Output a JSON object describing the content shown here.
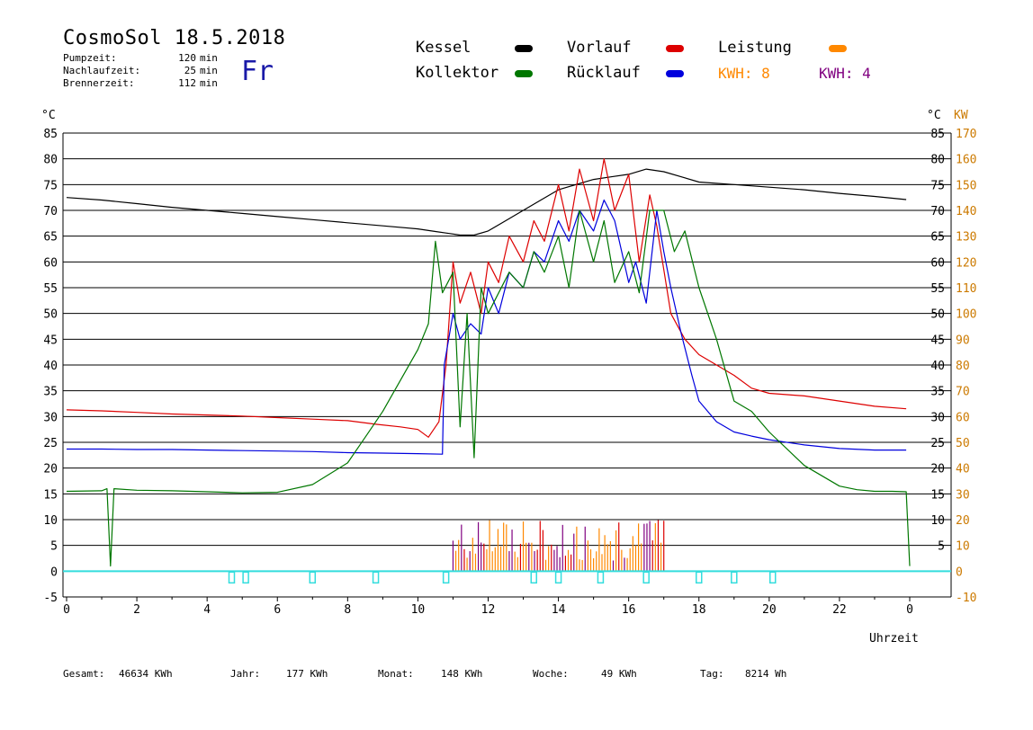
{
  "header": {
    "title": "CosmoSol 18.5.2018",
    "day": "Fr",
    "info": [
      {
        "label": "Pumpzeit:",
        "value": "120",
        "unit": "min"
      },
      {
        "label": "Nachlaufzeit:",
        "value": "25",
        "unit": "min"
      },
      {
        "label": "Brennerzeit:",
        "value": "112",
        "unit": "min"
      }
    ]
  },
  "legend": {
    "kessel": {
      "label": "Kessel",
      "color": "#000000"
    },
    "vorlauf": {
      "label": "Vorlauf",
      "color": "#dd0000"
    },
    "leistung": {
      "label": "Leistung",
      "color": "#ff8800"
    },
    "kollektor": {
      "label": "Kollektor",
      "color": "#007700"
    },
    "ruecklauf": {
      "label": "Rücklauf",
      "color": "#0000dd"
    },
    "kwh1": {
      "label": "KWH: 8",
      "color": "#ff8800"
    },
    "kwh2": {
      "label": "KWH: 4",
      "color": "#800080"
    }
  },
  "footer": [
    {
      "label": "Gesamt:",
      "value": "46634 KWh"
    },
    {
      "label": "Jahr:",
      "value": "177 KWh"
    },
    {
      "label": "Monat:",
      "value": "148 KWh"
    },
    {
      "label": "Woche:",
      "value": "49 KWh"
    },
    {
      "label": "Tag:",
      "value": "8214 Wh"
    }
  ],
  "chart_data": {
    "type": "line",
    "xlabel": "Uhrzeit",
    "ylabel_left": "°C",
    "ylabel_right_temp": "°C",
    "ylabel_right_power": "KW",
    "xlim": [
      0,
      24
    ],
    "ylim": [
      -5,
      85
    ],
    "ylim_right_power": [
      -10,
      170
    ],
    "x_ticks": [
      "0",
      "2",
      "4",
      "6",
      "8",
      "10",
      "12",
      "14",
      "16",
      "18",
      "20",
      "22",
      "0"
    ],
    "y_ticks_left": [
      "85",
      "80",
      "75",
      "70",
      "65",
      "60",
      "55",
      "50",
      "45",
      "40",
      "35",
      "30",
      "25",
      "20",
      "15",
      "10",
      "5",
      "0",
      "-5"
    ],
    "y_ticks_right_temp": [
      "85",
      "80",
      "75",
      "70",
      "65",
      "60",
      "55",
      "50",
      "45",
      "40",
      "35",
      "30",
      "25",
      "20",
      "15",
      "10",
      "5"
    ],
    "y_ticks_right_power": [
      "170",
      "160",
      "150",
      "140",
      "130",
      "120",
      "110",
      "100",
      "90",
      "80",
      "70",
      "60",
      "50",
      "40",
      "30",
      "20",
      "10",
      "0",
      "-10"
    ],
    "grid": true,
    "series": [
      {
        "name": "Kessel",
        "color": "#000000",
        "x": [
          0,
          1,
          2,
          3,
          4,
          5,
          6,
          7,
          8,
          9,
          10,
          10.5,
          10.8,
          11.2,
          11.6,
          12,
          12.5,
          13,
          13.5,
          14,
          14.5,
          15,
          15.5,
          16,
          16.5,
          17,
          17.5,
          18,
          19,
          20,
          21,
          22,
          23,
          23.9
        ],
        "y": [
          72.5,
          72,
          71.3,
          70.6,
          70,
          69.4,
          68.8,
          68.2,
          67.6,
          67,
          66.4,
          65.9,
          65.6,
          65.2,
          65.2,
          66,
          68,
          70,
          72,
          74,
          75,
          76,
          76.5,
          77,
          78,
          77.5,
          76.5,
          75.5,
          75,
          74.5,
          74,
          73.3,
          72.7,
          72.1
        ]
      },
      {
        "name": "Vorlauf",
        "color": "#dd0000",
        "x": [
          0,
          1,
          2,
          3,
          4,
          5,
          6,
          7,
          8,
          8.8,
          9.5,
          10,
          10.3,
          10.6,
          10.8,
          11,
          11.2,
          11.5,
          11.8,
          12,
          12.3,
          12.6,
          13,
          13.3,
          13.6,
          14,
          14.3,
          14.6,
          15,
          15.3,
          15.6,
          16,
          16.3,
          16.6,
          16.8,
          17.2,
          17.6,
          18,
          18.5,
          19,
          19.5,
          20,
          21,
          22,
          23,
          23.9
        ],
        "y": [
          31.3,
          31.1,
          30.8,
          30.5,
          30.3,
          30.1,
          29.8,
          29.5,
          29.2,
          28.5,
          28,
          27.5,
          26,
          29,
          40,
          60,
          52,
          58,
          50,
          60,
          56,
          65,
          60,
          68,
          64,
          75,
          66,
          78,
          68,
          80,
          70,
          77,
          60,
          73,
          67,
          50,
          45,
          42,
          40,
          38,
          35.5,
          34.5,
          34,
          33,
          32,
          31.5
        ]
      },
      {
        "name": "Rücklauf",
        "color": "#0000dd",
        "x": [
          0,
          1,
          2,
          3,
          4,
          5,
          6,
          7,
          8,
          9,
          10,
          10.7,
          10.75,
          11,
          11.2,
          11.5,
          11.8,
          12,
          12.3,
          12.6,
          13,
          13.3,
          13.6,
          14,
          14.3,
          14.6,
          15,
          15.3,
          15.6,
          16,
          16.2,
          16.5,
          16.8,
          17,
          17.2,
          17.5,
          17.8,
          18,
          18.5,
          19,
          19.5,
          20,
          21,
          22,
          23,
          23.9
        ],
        "y": [
          23.7,
          23.7,
          23.6,
          23.6,
          23.5,
          23.4,
          23.3,
          23.2,
          23.0,
          22.9,
          22.8,
          22.7,
          40,
          50,
          45,
          48,
          46,
          55,
          50,
          58,
          55,
          62,
          60,
          68,
          64,
          70,
          66,
          72,
          68,
          56,
          60,
          52,
          70,
          62,
          55,
          46,
          38,
          33,
          29,
          27,
          26.2,
          25.5,
          24.5,
          23.8,
          23.5,
          23.5
        ]
      },
      {
        "name": "Kollektor",
        "color": "#007700",
        "x": [
          0,
          1,
          1.15,
          1.25,
          1.35,
          2,
          3,
          4,
          5,
          6,
          7,
          8,
          8.5,
          9,
          9.5,
          10,
          10.3,
          10.5,
          10.7,
          11,
          11.2,
          11.4,
          11.6,
          11.8,
          12,
          12.3,
          12.6,
          13,
          13.3,
          13.6,
          14,
          14.3,
          14.6,
          15,
          15.3,
          15.6,
          16,
          16.3,
          16.6,
          17,
          17.3,
          17.6,
          18,
          18.5,
          19,
          19.5,
          20,
          21,
          22,
          22.5,
          23,
          23.5,
          23.9,
          24
        ],
        "y": [
          15.5,
          15.6,
          16,
          1,
          16,
          15.7,
          15.6,
          15.4,
          15.2,
          15.3,
          16.8,
          21,
          26,
          31,
          37,
          43,
          48,
          64,
          54,
          58,
          28,
          50,
          22,
          55,
          50,
          54,
          58,
          55,
          62,
          58,
          65,
          55,
          70,
          60,
          68,
          56,
          62,
          54,
          70,
          70,
          62,
          66,
          55,
          45,
          33,
          31,
          27,
          20.5,
          16.5,
          15.8,
          15.5,
          15.5,
          15.4,
          1
        ]
      }
    ]
  }
}
